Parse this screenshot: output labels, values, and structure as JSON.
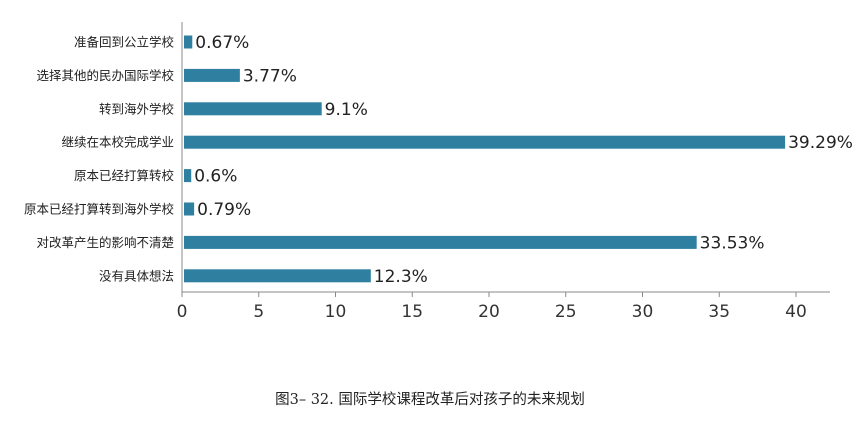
{
  "chart_data": {
    "type": "bar",
    "orientation": "horizontal",
    "categories": [
      "准备回到公立学校",
      "选择其他的民办国际学校",
      "转到海外学校",
      "继续在本校完成学业",
      "原本已经打算转校",
      "原本已经打算转到海外学校",
      "对改革产生的影响不清楚",
      "没有具体想法"
    ],
    "values": [
      0.67,
      3.77,
      9.1,
      39.29,
      0.6,
      0.79,
      33.53,
      12.3
    ],
    "value_labels": [
      "0.67%",
      "3.77%",
      "9.1%",
      "39.29%",
      "0.6%",
      "0.79%",
      "33.53%",
      "12.3%"
    ],
    "xlim": [
      0,
      40
    ],
    "xticks": [
      0,
      5,
      10,
      15,
      20,
      25,
      30,
      35,
      40
    ],
    "xtick_labels": [
      "0",
      "5",
      "10",
      "15",
      "20",
      "25",
      "30",
      "35",
      "40"
    ],
    "grid": false,
    "legend": "none",
    "bar_color": "#2e7fa0",
    "axis_color": "#8a8a8a",
    "caption": "图3– 32. 国际学校课程改革后对孩子的未来规划"
  }
}
